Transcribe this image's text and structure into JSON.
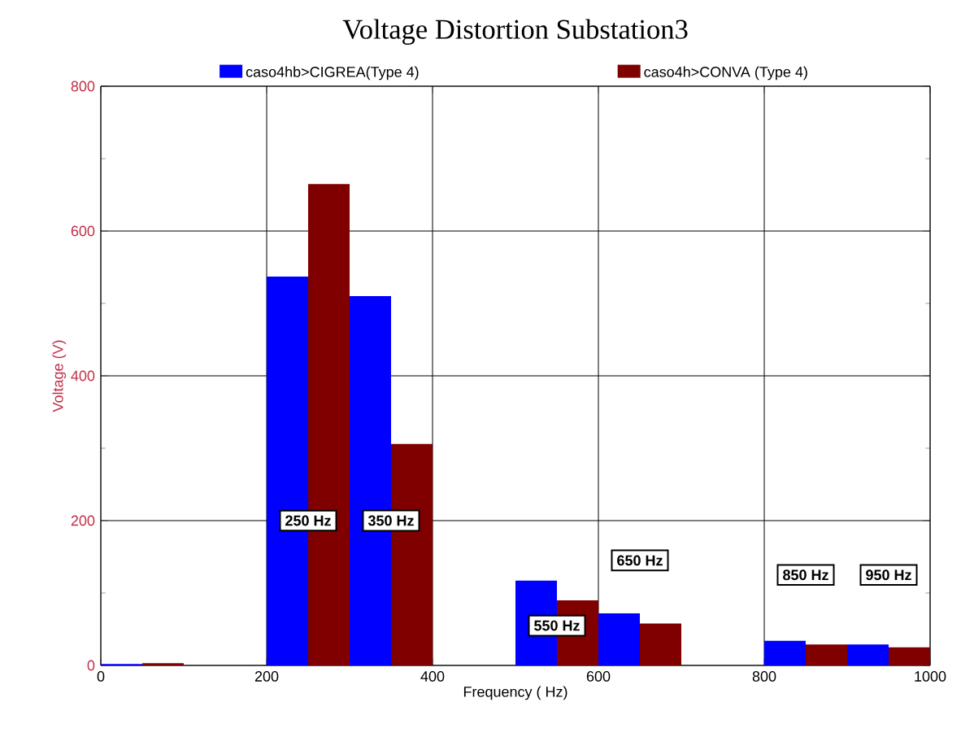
{
  "chart_data": {
    "type": "bar",
    "title": "Voltage Distortion Substation3",
    "xlabel": "Frequency ( Hz)",
    "ylabel": "Voltage (V)",
    "series": [
      {
        "name": "caso4hb>CIGREA(Type 4)",
        "color": "#0000ff",
        "x": [
          25,
          225,
          325,
          525,
          625,
          825,
          925
        ],
        "values": [
          2,
          537,
          510,
          117,
          72,
          34,
          29
        ]
      },
      {
        "name": "caso4h>CONVA (Type 4)",
        "color": "#800000",
        "x": [
          75,
          275,
          375,
          575,
          675,
          875,
          975
        ],
        "values": [
          3,
          665,
          306,
          90,
          58,
          29,
          25
        ]
      }
    ],
    "xlim": [
      0,
      1000
    ],
    "ylim": [
      0,
      800
    ],
    "xticks": [
      0,
      200,
      400,
      600,
      800,
      1000
    ],
    "yticks": [
      0,
      200,
      400,
      600,
      800
    ],
    "grid": true,
    "legend": "top",
    "annotations": [
      {
        "text": "250 Hz",
        "x": 250,
        "y": 200
      },
      {
        "text": "350 Hz",
        "x": 350,
        "y": 200
      },
      {
        "text": "550 Hz",
        "x": 550,
        "y": 55
      },
      {
        "text": "650 Hz",
        "x": 650,
        "y": 145
      },
      {
        "text": "850 Hz",
        "x": 850,
        "y": 125
      },
      {
        "text": "950 Hz",
        "x": 950,
        "y": 125
      }
    ]
  }
}
